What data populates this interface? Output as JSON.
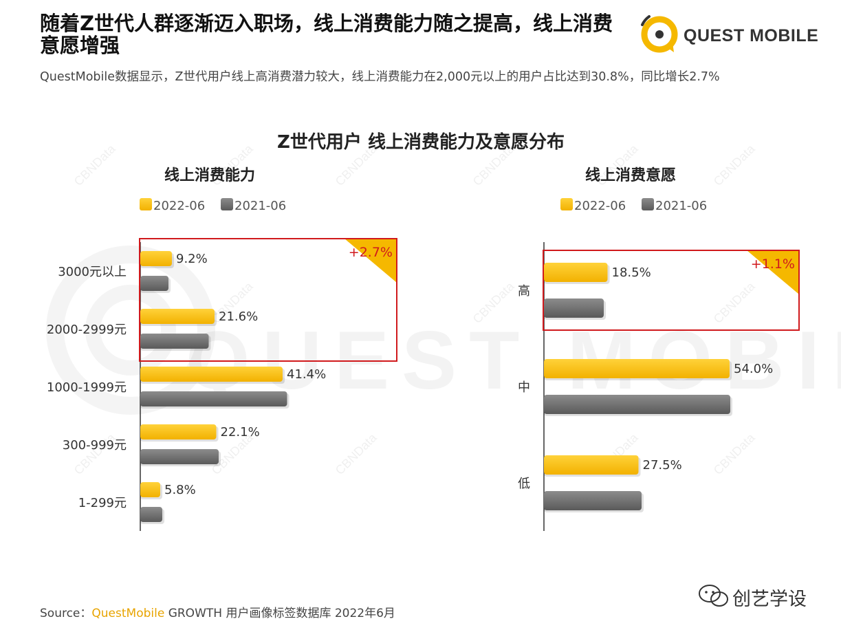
{
  "header": {
    "title": "随着Z世代人群逐渐迈入职场，线上消费能力随之提高，线上消费意愿增强",
    "subtitle": "QuestMobile数据显示，Z世代用户线上高消费潜力较大，线上消费能力在2,000元以上的用户占比达到30.8%，同比增长2.7%",
    "logo_text": "QUEST MOBILE"
  },
  "watermark": {
    "text": "QUEST MOBILE",
    "cbn": "CBNData"
  },
  "colors": {
    "series_2022": "#f5b800",
    "series_2021": "#707070",
    "highlight": "#d0191c",
    "badge": "#f5b800"
  },
  "chart_data": {
    "title": "Z世代用户 线上消费能力及意愿分布",
    "charts": [
      {
        "type": "bar",
        "orientation": "horizontal",
        "title": "线上消费能力",
        "categories": [
          "3000元以上",
          "2000-2999元",
          "1000-1999元",
          "300-999元",
          "1-299元"
        ],
        "series": [
          {
            "name": "2022-06",
            "values": [
              9.2,
              21.6,
              41.4,
              22.1,
              5.8
            ],
            "labels": [
              "9.2%",
              "21.6%",
              "41.4%",
              "22.1%",
              "5.8%"
            ]
          },
          {
            "name": "2021-06",
            "values": [
              8.2,
              19.9,
              42.7,
              22.8,
              6.4
            ]
          }
        ],
        "highlight": {
          "categories": [
            "3000元以上",
            "2000-2999元"
          ],
          "label": "+2.7%"
        },
        "xlim": [
          0,
          70
        ],
        "legend": "top"
      },
      {
        "type": "bar",
        "orientation": "horizontal",
        "title": "线上消费意愿",
        "categories": [
          "高",
          "中",
          "低"
        ],
        "series": [
          {
            "name": "2022-06",
            "values": [
              18.5,
              54.0,
              27.5
            ],
            "labels": [
              "18.5%",
              "54.0%",
              "27.5%"
            ]
          },
          {
            "name": "2021-06",
            "values": [
              17.4,
              54.2,
              28.4
            ]
          }
        ],
        "highlight": {
          "categories": [
            "高"
          ],
          "label": "+1.1%"
        },
        "xlim": [
          0,
          70
        ],
        "legend": "top"
      }
    ]
  },
  "source": {
    "prefix": "Source：",
    "brand": "QuestMobile",
    "rest": " GROWTH 用户画像标签数据库 2022年6月"
  },
  "wechat": {
    "account": "创艺学设"
  }
}
